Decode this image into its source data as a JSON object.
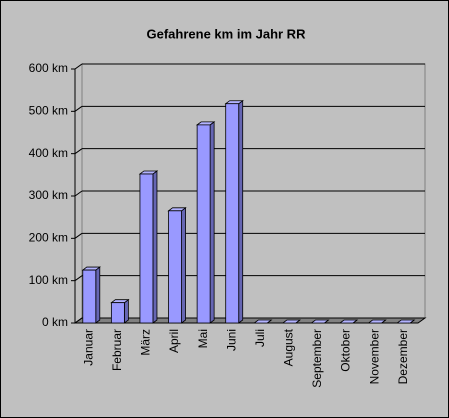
{
  "chart_data": {
    "type": "bar",
    "title": "Gefahrene km im Jahr RR",
    "categories": [
      "Januar",
      "Februar",
      "März",
      "April",
      "Mai",
      "Juni",
      "Juli",
      "August",
      "September",
      "Oktober",
      "November",
      "Dezember"
    ],
    "values": [
      125,
      48,
      352,
      265,
      468,
      518,
      0,
      0,
      0,
      0,
      0,
      0
    ],
    "color": "#9999ff",
    "ylim": [
      0,
      600
    ],
    "yticks": [
      {
        "value": 0,
        "label": "0 km"
      },
      {
        "value": 100,
        "label": "100 km"
      },
      {
        "value": 200,
        "label": "200 km"
      },
      {
        "value": 300,
        "label": "300 km"
      },
      {
        "value": 400,
        "label": "400 km"
      },
      {
        "value": 500,
        "label": "500 km"
      },
      {
        "value": 600,
        "label": "600 km"
      }
    ],
    "grid": true
  }
}
